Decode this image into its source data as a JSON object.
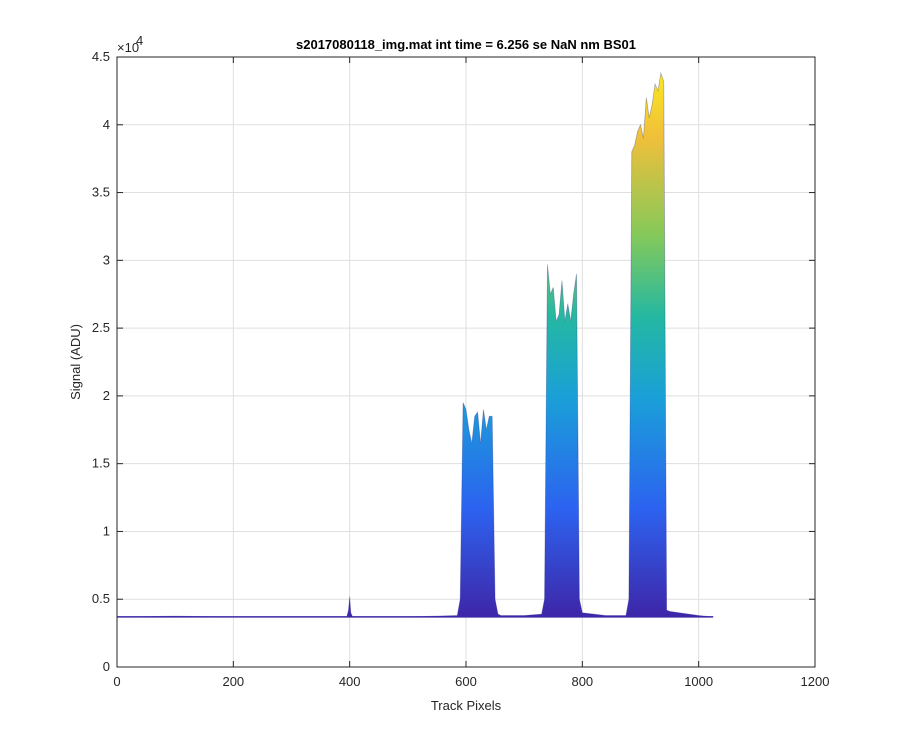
{
  "chart_data": {
    "type": "area",
    "title": "s2017080118_img.mat int time = 6.256 se  NaN nm BS01",
    "xlabel": "Track Pixels",
    "ylabel": "Signal (ADU)",
    "xlim": [
      0,
      1200
    ],
    "ylim": [
      0,
      45000
    ],
    "y_exponent_label": "×10",
    "y_exponent_power": "4",
    "x_ticks": [
      0,
      200,
      400,
      600,
      800,
      1000,
      1200
    ],
    "x_tick_labels": [
      "0",
      "200",
      "400",
      "600",
      "800",
      "1000",
      "1200"
    ],
    "y_ticks": [
      0,
      5000,
      10000,
      15000,
      20000,
      25000,
      30000,
      35000,
      40000,
      45000
    ],
    "y_tick_labels": [
      "0",
      "0.5",
      "1",
      "1.5",
      "2",
      "2.5",
      "3",
      "3.5",
      "4",
      "4.5"
    ],
    "grid": true,
    "baseline": 3700,
    "colormap": [
      "#3e26a8",
      "#2c63f0",
      "#1a9fd8",
      "#24b8a2",
      "#84c95a",
      "#f0bf3a",
      "#f9e91f"
    ],
    "series": [
      {
        "x": [
          0,
          100,
          200,
          300,
          395,
          398,
          400,
          402,
          405,
          500,
          585,
          590,
          595,
          600,
          605,
          610,
          615,
          620,
          625,
          630,
          635,
          640,
          645,
          650,
          655,
          660,
          700,
          730,
          735,
          740,
          745,
          750,
          755,
          760,
          765,
          770,
          775,
          780,
          785,
          790,
          795,
          800,
          840,
          875,
          880,
          885,
          890,
          895,
          900,
          905,
          910,
          915,
          920,
          925,
          930,
          935,
          940,
          945,
          950,
          1000,
          1025
        ],
        "y": [
          3700,
          3750,
          3700,
          3700,
          3700,
          4200,
          5200,
          4000,
          3700,
          3700,
          3800,
          5000,
          19500,
          19000,
          17500,
          16500,
          18500,
          18800,
          16500,
          19000,
          17500,
          18500,
          18500,
          5000,
          3900,
          3800,
          3800,
          3900,
          5000,
          29700,
          27500,
          28000,
          25500,
          26000,
          28500,
          25500,
          26800,
          25500,
          27500,
          29000,
          5000,
          4000,
          3800,
          3800,
          5000,
          38000,
          38500,
          39500,
          40000,
          39000,
          42000,
          40500,
          41500,
          43000,
          42500,
          43800,
          43200,
          4200,
          4100,
          3800,
          3700
        ]
      }
    ]
  }
}
